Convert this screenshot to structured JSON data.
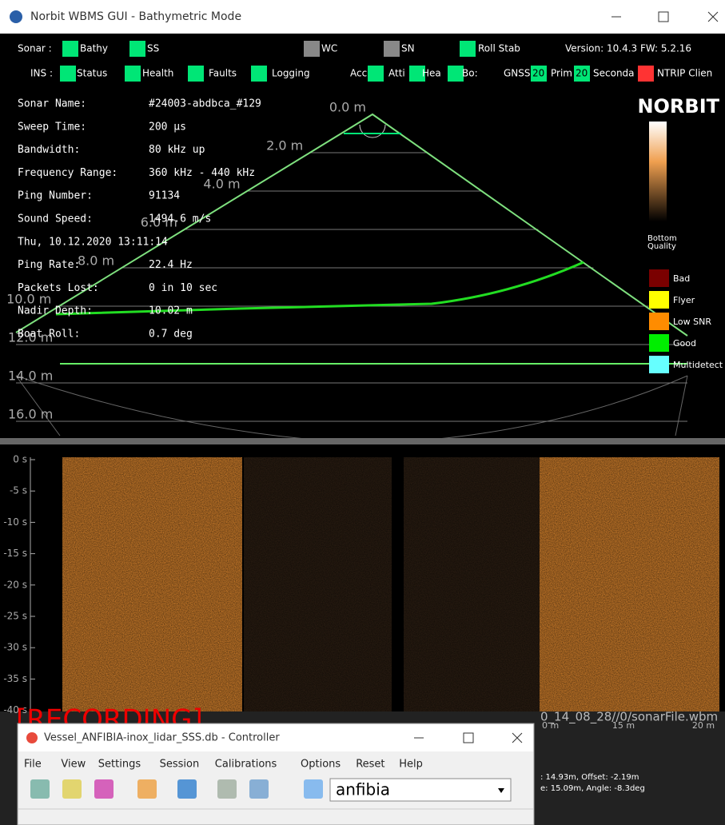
{
  "window": {
    "title": "Norbit WBMS GUI - Bathymetric Mode"
  },
  "sonar_bar": {
    "label": "Sonar :",
    "items": [
      "Bathy",
      "SS",
      "WC",
      "SN",
      "Roll Stab"
    ],
    "version": "Version: 10.4.3  FW: 5.2.16"
  },
  "ins_bar": {
    "label": "INS :",
    "items": [
      "Status",
      "Health",
      "Faults",
      "Logging",
      "Acc",
      "Atti",
      "Hea",
      "Bo:",
      "GNSS",
      "Prim",
      "Seconda",
      "NTRIP Clien"
    ],
    "counts": [
      "20",
      "20"
    ]
  },
  "info": {
    "rows": [
      [
        "Sonar Name:",
        "#24003-abdbca_#129"
      ],
      [
        "Sweep Time:",
        "200 µs"
      ],
      [
        "Bandwidth:",
        "80 kHz up"
      ],
      [
        "Frequency Range:",
        "360 kHz - 440 kHz"
      ],
      [
        "Ping Number:",
        "91134"
      ],
      [
        "Sound Speed:",
        "1494.6 m/s"
      ],
      [
        "Thu, 10.12.2020 13:11:14",
        ""
      ],
      [
        "Ping Rate:",
        "22.4 Hz"
      ],
      [
        "Packets Lost:",
        "0 in 10 sec"
      ],
      [
        "Nadir Depth:",
        "10.02 m"
      ],
      [
        "Boat Roll:",
        "0.7 deg"
      ]
    ]
  },
  "ranges": [
    "0.0 m",
    "2.0 m",
    "4.0 m",
    "6.0 m",
    "8.0 m",
    "10.0 m",
    "12.0 m",
    "14.0 m",
    "16.0 m"
  ],
  "logo": "NORBIT",
  "quality": {
    "title": [
      "Bottom",
      "Quality"
    ],
    "levels": [
      "Bad",
      "Flyer",
      "Low SNR",
      "Good",
      "Multidetect"
    ]
  },
  "sidescan": {
    "time_ticks": [
      "0 s",
      "-5 s",
      "-10 s",
      "-15 s",
      "-20 s",
      "-25 s",
      "-30 s",
      "-35 s",
      "-40 s"
    ],
    "recording": "[RECORDING]",
    "file": "0_14_08_28//0/sonarFile.wbm",
    "range_ticks": [
      "0 m",
      "15 m",
      "20 m"
    ],
    "status": [
      ": 14.93m,  Offset: -2.19m",
      "e: 15.09m,  Angle: -8.3deg"
    ]
  },
  "controller": {
    "title": "Vessel_ANFIBIA-inox_lidar_SSS.db - Controller",
    "menu": [
      "File",
      "View",
      "Settings",
      "Session",
      "Calibrations",
      "Options",
      "Reset",
      "Help"
    ],
    "vessel": "anfibia"
  }
}
